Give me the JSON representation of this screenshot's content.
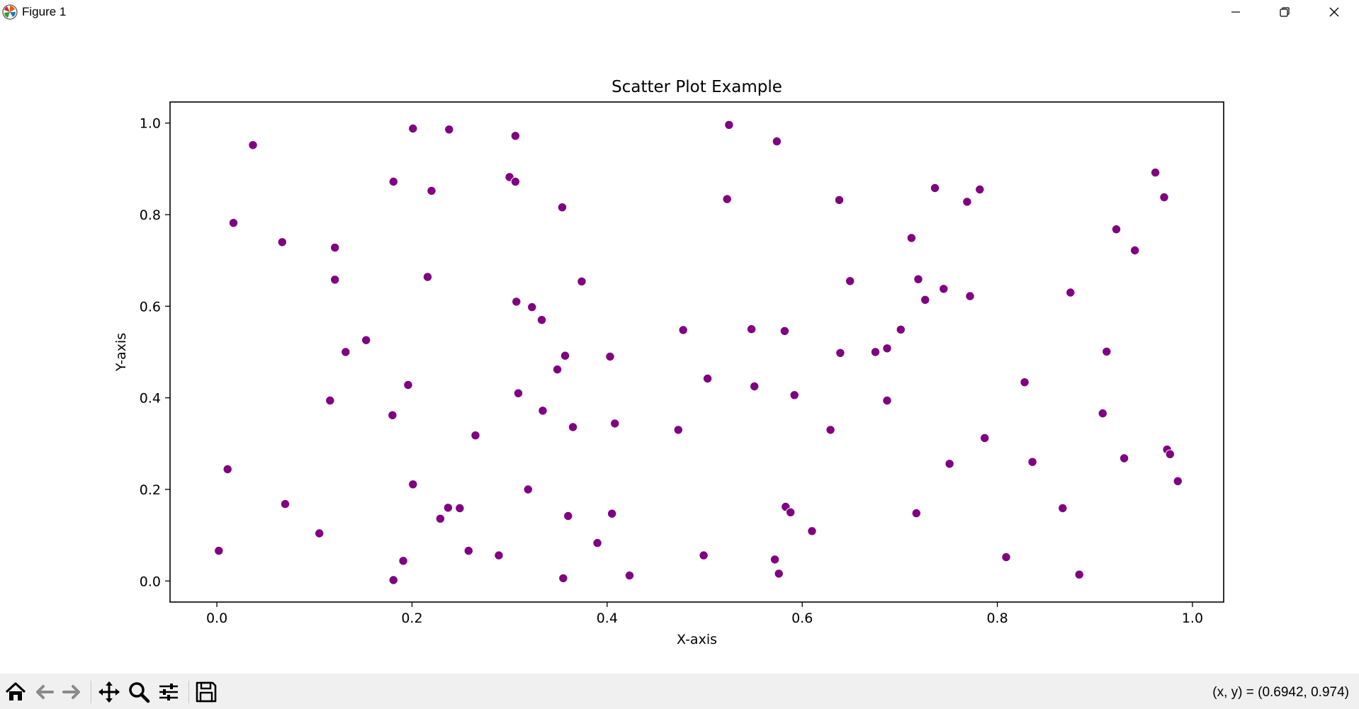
{
  "window": {
    "title": "Figure 1",
    "icons": {
      "app": "matplotlib-icon",
      "minimize": "minimize-icon",
      "maximize": "restore-icon",
      "close": "close-icon"
    }
  },
  "toolbar": {
    "buttons": [
      {
        "name": "home-button",
        "icon": "home-icon"
      },
      {
        "name": "back-button",
        "icon": "arrow-left-icon"
      },
      {
        "name": "forward-button",
        "icon": "arrow-right-icon"
      },
      {
        "name": "pan-button",
        "icon": "move-icon"
      },
      {
        "name": "zoom-button",
        "icon": "magnifier-icon"
      },
      {
        "name": "configure-subplots-button",
        "icon": "sliders-icon"
      },
      {
        "name": "save-button",
        "icon": "floppy-disk-icon"
      }
    ],
    "coords_text": "(x, y) = (0.6942, 0.974)"
  },
  "chart_data": {
    "type": "scatter",
    "title": "Scatter Plot Example",
    "xlabel": "X-axis",
    "ylabel": "Y-axis",
    "xlim": [
      -0.048,
      1.032
    ],
    "ylim": [
      -0.046,
      1.046
    ],
    "xticks": [
      0.0,
      0.2,
      0.4,
      0.6,
      0.8,
      1.0
    ],
    "xtick_labels": [
      "0.0",
      "0.2",
      "0.4",
      "0.6",
      "0.8",
      "1.0"
    ],
    "yticks": [
      0.0,
      0.2,
      0.4,
      0.6,
      0.8,
      1.0
    ],
    "ytick_labels": [
      "0.0",
      "0.2",
      "0.4",
      "0.6",
      "0.8",
      "1.0"
    ],
    "grid": false,
    "marker_color": "#800080",
    "points": [
      [
        0.002,
        0.066
      ],
      [
        0.011,
        0.244
      ],
      [
        0.017,
        0.782
      ],
      [
        0.037,
        0.952
      ],
      [
        0.067,
        0.74
      ],
      [
        0.07,
        0.168
      ],
      [
        0.105,
        0.104
      ],
      [
        0.116,
        0.394
      ],
      [
        0.121,
        0.728
      ],
      [
        0.121,
        0.658
      ],
      [
        0.132,
        0.5
      ],
      [
        0.153,
        0.526
      ],
      [
        0.18,
        0.362
      ],
      [
        0.181,
        0.872
      ],
      [
        0.181,
        0.002
      ],
      [
        0.191,
        0.044
      ],
      [
        0.196,
        0.428
      ],
      [
        0.201,
        0.988
      ],
      [
        0.201,
        0.211
      ],
      [
        0.216,
        0.664
      ],
      [
        0.22,
        0.852
      ],
      [
        0.229,
        0.136
      ],
      [
        0.237,
        0.16
      ],
      [
        0.238,
        0.986
      ],
      [
        0.249,
        0.159
      ],
      [
        0.258,
        0.066
      ],
      [
        0.265,
        0.318
      ],
      [
        0.289,
        0.056
      ],
      [
        0.3,
        0.882
      ],
      [
        0.306,
        0.972
      ],
      [
        0.306,
        0.872
      ],
      [
        0.307,
        0.61
      ],
      [
        0.309,
        0.41
      ],
      [
        0.319,
        0.2
      ],
      [
        0.323,
        0.598
      ],
      [
        0.333,
        0.57
      ],
      [
        0.334,
        0.372
      ],
      [
        0.349,
        0.462
      ],
      [
        0.354,
        0.816
      ],
      [
        0.355,
        0.006
      ],
      [
        0.357,
        0.492
      ],
      [
        0.36,
        0.142
      ],
      [
        0.365,
        0.336
      ],
      [
        0.374,
        0.654
      ],
      [
        0.39,
        0.083
      ],
      [
        0.403,
        0.49
      ],
      [
        0.405,
        0.147
      ],
      [
        0.408,
        0.344
      ],
      [
        0.423,
        0.012
      ],
      [
        0.473,
        0.33
      ],
      [
        0.478,
        0.548
      ],
      [
        0.499,
        0.056
      ],
      [
        0.503,
        0.442
      ],
      [
        0.523,
        0.834
      ],
      [
        0.525,
        0.996
      ],
      [
        0.548,
        0.55
      ],
      [
        0.551,
        0.425
      ],
      [
        0.572,
        0.047
      ],
      [
        0.574,
        0.96
      ],
      [
        0.576,
        0.016
      ],
      [
        0.582,
        0.546
      ],
      [
        0.583,
        0.162
      ],
      [
        0.588,
        0.15
      ],
      [
        0.592,
        0.406
      ],
      [
        0.61,
        0.109
      ],
      [
        0.629,
        0.33
      ],
      [
        0.638,
        0.832
      ],
      [
        0.639,
        0.498
      ],
      [
        0.649,
        0.655
      ],
      [
        0.675,
        0.5
      ],
      [
        0.687,
        0.508
      ],
      [
        0.687,
        0.394
      ],
      [
        0.701,
        0.549
      ],
      [
        0.712,
        0.749
      ],
      [
        0.717,
        0.148
      ],
      [
        0.719,
        0.659
      ],
      [
        0.726,
        0.614
      ],
      [
        0.736,
        0.858
      ],
      [
        0.745,
        0.638
      ],
      [
        0.751,
        0.256
      ],
      [
        0.769,
        0.828
      ],
      [
        0.772,
        0.622
      ],
      [
        0.782,
        0.855
      ],
      [
        0.787,
        0.312
      ],
      [
        0.809,
        0.052
      ],
      [
        0.828,
        0.434
      ],
      [
        0.836,
        0.26
      ],
      [
        0.867,
        0.159
      ],
      [
        0.875,
        0.63
      ],
      [
        0.884,
        0.014
      ],
      [
        0.908,
        0.366
      ],
      [
        0.912,
        0.501
      ],
      [
        0.922,
        0.768
      ],
      [
        0.93,
        0.268
      ],
      [
        0.941,
        0.722
      ],
      [
        0.962,
        0.892
      ],
      [
        0.971,
        0.838
      ],
      [
        0.974,
        0.287
      ],
      [
        0.977,
        0.277
      ],
      [
        0.985,
        0.218
      ]
    ]
  }
}
